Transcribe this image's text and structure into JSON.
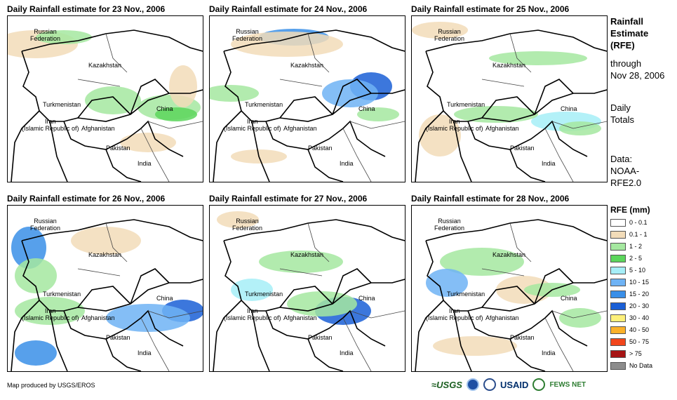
{
  "panels": [
    {
      "title": "Daily Rainfall estimate for 23 Nov., 2006"
    },
    {
      "title": "Daily Rainfall estimate for 24 Nov., 2006"
    },
    {
      "title": "Daily Rainfall estimate for 25 Nov., 2006"
    },
    {
      "title": "Daily Rainfall estimate for 26 Nov., 2006"
    },
    {
      "title": "Daily Rainfall estimate for 27 Nov., 2006"
    },
    {
      "title": "Daily Rainfall estimate for 28 Nov., 2006"
    }
  ],
  "map_labels": {
    "russia": "Russian\nFederation",
    "kazakhstan": "Kazakhstan",
    "turkmenistan": "Turkmenistan",
    "china": "China",
    "iran": "Iran\n(Islamic Republic of)",
    "afghanistan": "Afghanistan",
    "pakistan": "Pakistan",
    "india": "India"
  },
  "sidebar": {
    "line1": "Rainfall",
    "line2": "Estimate",
    "line3": "(RFE)",
    "line4": "through",
    "line5": "Nov 28, 2006",
    "line6": "Daily",
    "line7": "Totals",
    "line8": "Data:",
    "line9": "NOAA-",
    "line10": "RFE2.0"
  },
  "legend": {
    "title": "RFE (mm)",
    "items": [
      {
        "label": "0 - 0.1",
        "color": "#ffffff"
      },
      {
        "label": "0.1 - 1",
        "color": "#f2dcb9"
      },
      {
        "label": "1 - 2",
        "color": "#a5e8a0"
      },
      {
        "label": "2 - 5",
        "color": "#5cd65c"
      },
      {
        "label": "5 - 10",
        "color": "#a6eef7"
      },
      {
        "label": "10 - 15",
        "color": "#6fb3f5"
      },
      {
        "label": "15 - 20",
        "color": "#3a8fe8"
      },
      {
        "label": "20 - 30",
        "color": "#1a5fd6"
      },
      {
        "label": "30 - 40",
        "color": "#fdf07a"
      },
      {
        "label": "40 - 50",
        "color": "#fbb12a"
      },
      {
        "label": "50 - 75",
        "color": "#f2461c"
      },
      {
        "label": "> 75",
        "color": "#a61414"
      },
      {
        "label": "No Data",
        "color": "#8c8c8c"
      }
    ]
  },
  "footer": {
    "credit": "Map produced by USGS/EROS",
    "logo_usgs": "≈USGS",
    "logo_usaid": "USAID",
    "logo_fews": "FEWS NET"
  }
}
